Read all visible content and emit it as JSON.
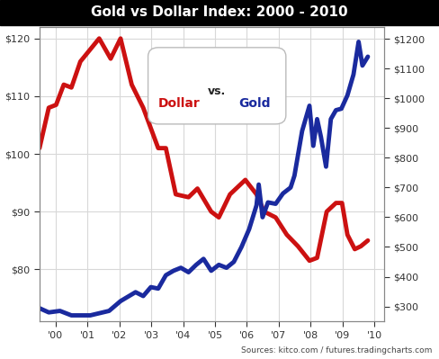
{
  "chart_data": {
    "type": "line",
    "title": "Gold vs Dollar Index: 2000 - 2010",
    "annotation": "vs.",
    "source": "Sources: kitco.com / futures.tradingcharts.com",
    "legend": "upper center",
    "grid": true,
    "xlim": [
      1999.5,
      2010.3
    ],
    "xticks": [
      {
        "value": 2000,
        "label": "'00"
      },
      {
        "value": 2001,
        "label": "'01"
      },
      {
        "value": 2002,
        "label": "'02"
      },
      {
        "value": 2003,
        "label": "'03"
      },
      {
        "value": 2004,
        "label": "'04"
      },
      {
        "value": 2005,
        "label": "'05"
      },
      {
        "value": 2006,
        "label": "'06"
      },
      {
        "value": 2007,
        "label": "'07"
      },
      {
        "value": 2008,
        "label": "'08"
      },
      {
        "value": 2009,
        "label": "'09"
      },
      {
        "value": 2010,
        "label": "'10"
      }
    ],
    "ylim": [
      71,
      122
    ],
    "yticks": [
      {
        "value": 80,
        "label": "$80"
      },
      {
        "value": 90,
        "label": "$90"
      },
      {
        "value": 100,
        "label": "$100"
      },
      {
        "value": 110,
        "label": "$110"
      },
      {
        "value": 120,
        "label": "$120"
      }
    ],
    "y2lim": [
      250,
      1240
    ],
    "y2ticks": [
      {
        "value": 300,
        "label": "$300"
      },
      {
        "value": 400,
        "label": "$400"
      },
      {
        "value": 500,
        "label": "$500"
      },
      {
        "value": 600,
        "label": "$600"
      },
      {
        "value": 700,
        "label": "$700"
      },
      {
        "value": 800,
        "label": "$800"
      },
      {
        "value": 900,
        "label": "$900"
      },
      {
        "value": 1000,
        "label": "$1000"
      },
      {
        "value": 1100,
        "label": "$1100"
      },
      {
        "value": 1200,
        "label": "$1200"
      }
    ],
    "series": [
      {
        "name": "Dollar",
        "color": "#cc1111",
        "x": [
          1999.5,
          1999.79,
          2000.02,
          2000.26,
          2000.5,
          2000.78,
          2001.37,
          2001.73,
          2002.04,
          2002.39,
          2002.75,
          2003.22,
          2003.46,
          2003.77,
          2004.17,
          2004.45,
          2004.88,
          2005.12,
          2005.47,
          2005.95,
          2006.3,
          2006.54,
          2006.9,
          2007.25,
          2007.6,
          2007.96,
          2008.2,
          2008.5,
          2008.79,
          2008.98,
          2009.15,
          2009.38,
          2009.57,
          2009.79
        ],
        "values": [
          101,
          108,
          108.5,
          112,
          111.5,
          116,
          120,
          116.5,
          120,
          112,
          108,
          101,
          101,
          93,
          92.5,
          94,
          90,
          89,
          93,
          95.5,
          93,
          90,
          89,
          86,
          84,
          81.5,
          82,
          90,
          91.5,
          91.5,
          86,
          83.5,
          84,
          85
        ]
      },
      {
        "name": "Gold",
        "color": "#1a2a9e",
        "axis": "y2",
        "x": [
          1999.5,
          1999.79,
          2000.14,
          2000.5,
          2001.09,
          2001.68,
          2002.04,
          2002.51,
          2002.75,
          2002.99,
          2003.22,
          2003.46,
          2003.7,
          2003.93,
          2004.17,
          2004.41,
          2004.64,
          2004.88,
          2005.12,
          2005.36,
          2005.59,
          2005.83,
          2006.07,
          2006.3,
          2006.37,
          2006.49,
          2006.66,
          2006.9,
          2007.13,
          2007.37,
          2007.49,
          2007.73,
          2007.96,
          2008.08,
          2008.2,
          2008.32,
          2008.48,
          2008.63,
          2008.79,
          2008.96,
          2009.15,
          2009.34,
          2009.5,
          2009.62,
          2009.79
        ],
        "values": [
          294,
          280,
          285,
          270,
          270,
          285,
          318,
          348,
          335,
          365,
          360,
          405,
          420,
          430,
          415,
          440,
          460,
          420,
          440,
          430,
          450,
          500,
          560,
          640,
          710,
          600,
          650,
          645,
          680,
          700,
          740,
          890,
          975,
          840,
          930,
          870,
          770,
          930,
          960,
          965,
          1010,
          1080,
          1190,
          1110,
          1140
        ]
      }
    ]
  }
}
